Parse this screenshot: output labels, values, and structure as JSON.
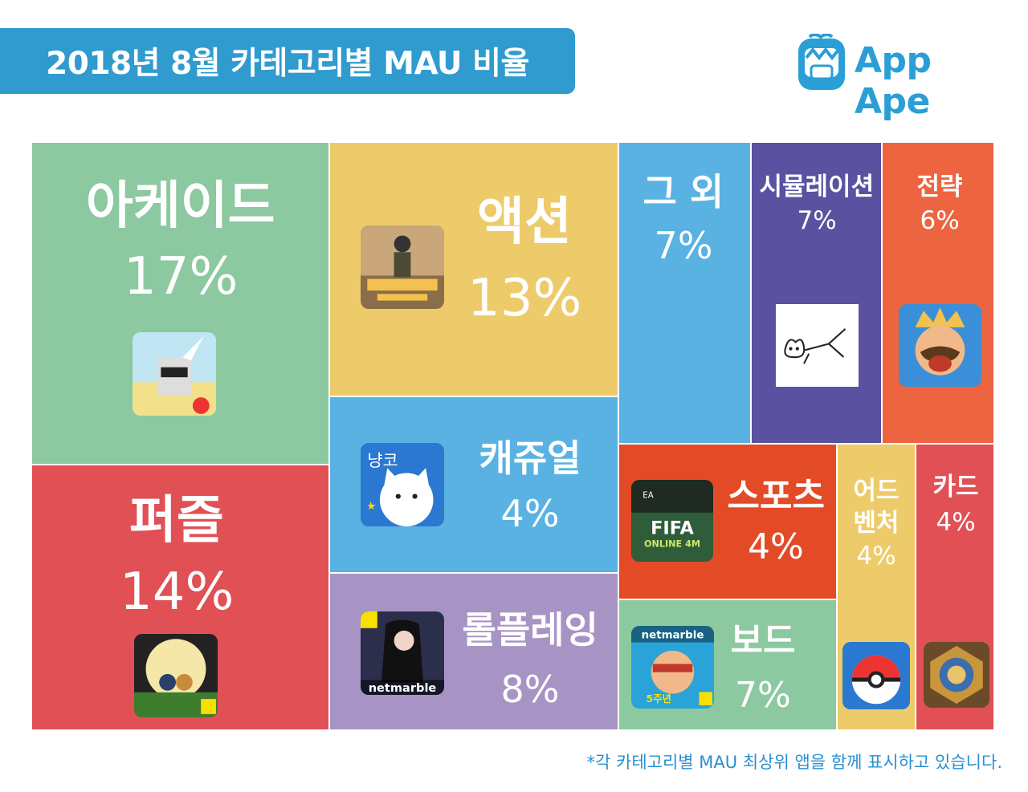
{
  "title": "2018년 8월 카테고리별 MAU 비율",
  "brand": {
    "name": "App Ape",
    "color": "#2a9fd6"
  },
  "footnote": "*각 카테고리별 MAU 최상위 앱을 함께 표시하고 있습니다.",
  "chart_data": {
    "type": "treemap",
    "title": "2018년 8월 카테고리별 MAU 비율",
    "unit": "%",
    "categories": [
      {
        "name": "아케이드",
        "value": 17,
        "label": "17%",
        "color": "#8cc8a0",
        "top_app_icon": "unicorn-app-icon"
      },
      {
        "name": "퍼즐",
        "value": 14,
        "label": "14%",
        "color": "#e05055",
        "top_app_icon": "friends-popcorn-app-icon"
      },
      {
        "name": "액션",
        "value": 13,
        "label": "13%",
        "color": "#eecb6a",
        "top_app_icon": "battlegrounds-app-icon"
      },
      {
        "name": "캐쥬얼",
        "value": 4,
        "label": "4%",
        "color": "#5ab2e2",
        "top_app_icon": "cat-app-icon"
      },
      {
        "name": "롤플레잉",
        "value": 8,
        "label": "8%",
        "color": "#a894c4",
        "top_app_icon": "netmarble-rpg-app-icon"
      },
      {
        "name": "그 외",
        "value": 7,
        "label": "7%",
        "color": "#5ab2e2"
      },
      {
        "name": "시뮬레이션",
        "value": 7,
        "label": "7%",
        "color": "#5a52a0",
        "top_app_icon": "cat-sketch-app-icon"
      },
      {
        "name": "전략",
        "value": 6,
        "label": "6%",
        "color": "#ec6540",
        "top_app_icon": "clash-royale-app-icon"
      },
      {
        "name": "스포츠",
        "value": 4,
        "label": "4%",
        "color": "#e34a26",
        "top_app_icon": "fifa-online-app-icon"
      },
      {
        "name": "어드벤처",
        "value": 4,
        "label": "4%",
        "color": "#eecb6a",
        "top_app_icon": "pokemon-go-app-icon"
      },
      {
        "name": "카드",
        "value": 4,
        "label": "4%",
        "color": "#e05055",
        "top_app_icon": "hearthstone-app-icon"
      },
      {
        "name": "보드",
        "value": 7,
        "label": "7%",
        "color": "#8cc8a0",
        "top_app_icon": "netmarble-board-app-icon"
      }
    ]
  }
}
